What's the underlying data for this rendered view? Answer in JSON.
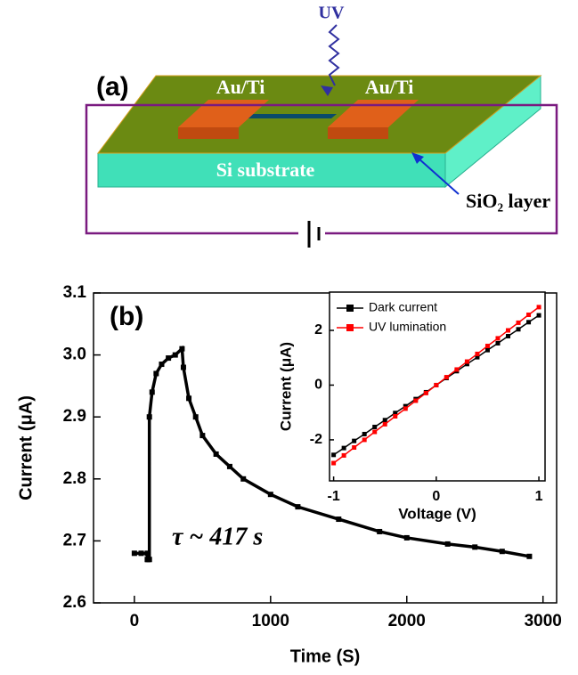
{
  "diagram": {
    "uv": "UV",
    "panel_label": "(a)",
    "left_contact": "Au/Ti",
    "right_contact": "Au/Ti",
    "substrate": "Si substrate",
    "oxide": "SiO₂ layer"
  },
  "chart_data": [
    {
      "type": "line",
      "panel_label": "(b)",
      "annotation": "τ ~ 417 s",
      "x_label": "Time (S)",
      "y_label": "Current (μA)",
      "xlim": [
        -300,
        3100
      ],
      "ylim": [
        2.6,
        3.1
      ],
      "xticks": [
        0,
        1000,
        2000,
        3000
      ],
      "yticks": [
        2.6,
        2.7,
        2.8,
        2.9,
        {
          "value": 3,
          "label": "3.0"
        },
        3.1
      ],
      "series": [
        {
          "color": "#000000",
          "x": [
            0,
            50,
            95,
            95,
            100,
            110,
            110,
            130,
            160,
            200,
            250,
            300,
            350,
            360,
            400,
            450,
            500,
            600,
            700,
            800,
            1000,
            1200,
            1500,
            1800,
            2000,
            2300,
            2500,
            2700,
            2900
          ],
          "values": [
            2.68,
            2.68,
            2.68,
            2.67,
            2.67,
            2.67,
            2.9,
            2.94,
            2.97,
            2.985,
            2.995,
            3.0,
            3.01,
            2.98,
            2.93,
            2.9,
            2.87,
            2.84,
            2.82,
            2.8,
            2.775,
            2.755,
            2.735,
            2.715,
            2.705,
            2.695,
            2.69,
            2.683,
            2.675
          ]
        }
      ]
    },
    {
      "type": "line",
      "x_label": "Voltage (V)",
      "y_label": "Current (μA)",
      "xlim": [
        -1.04,
        1.06
      ],
      "ylim": [
        -3.5,
        3.4
      ],
      "xticks": [
        -1,
        0,
        1
      ],
      "yticks": [
        -2,
        0,
        2
      ],
      "legend": "upper left",
      "series": [
        {
          "name": "Dark current",
          "color": "#000000",
          "x": [
            -1,
            -0.9,
            -0.8,
            -0.7,
            -0.6,
            -0.5,
            -0.4,
            -0.3,
            -0.2,
            -0.1,
            0,
            0.1,
            0.2,
            0.3,
            0.4,
            0.5,
            0.6,
            0.7,
            0.8,
            0.9,
            1
          ],
          "values": [
            -2.55,
            -2.3,
            -2.04,
            -1.79,
            -1.53,
            -1.28,
            -1.02,
            -0.77,
            -0.51,
            -0.26,
            0,
            0.26,
            0.51,
            0.77,
            1.02,
            1.28,
            1.53,
            1.79,
            2.04,
            2.3,
            2.55
          ]
        },
        {
          "name": "UV lumination",
          "color": "#ff0000",
          "x": [
            -1,
            -0.9,
            -0.8,
            -0.7,
            -0.6,
            -0.5,
            -0.4,
            -0.3,
            -0.2,
            -0.1,
            0,
            0.1,
            0.2,
            0.3,
            0.4,
            0.5,
            0.6,
            0.7,
            0.8,
            0.9,
            1
          ],
          "values": [
            -2.85,
            -2.57,
            -2.28,
            -2,
            -1.71,
            -1.43,
            -1.14,
            -0.86,
            -0.57,
            -0.29,
            0,
            0.29,
            0.57,
            0.86,
            1.14,
            1.43,
            1.71,
            2,
            2.28,
            2.57,
            2.85
          ]
        }
      ]
    }
  ]
}
